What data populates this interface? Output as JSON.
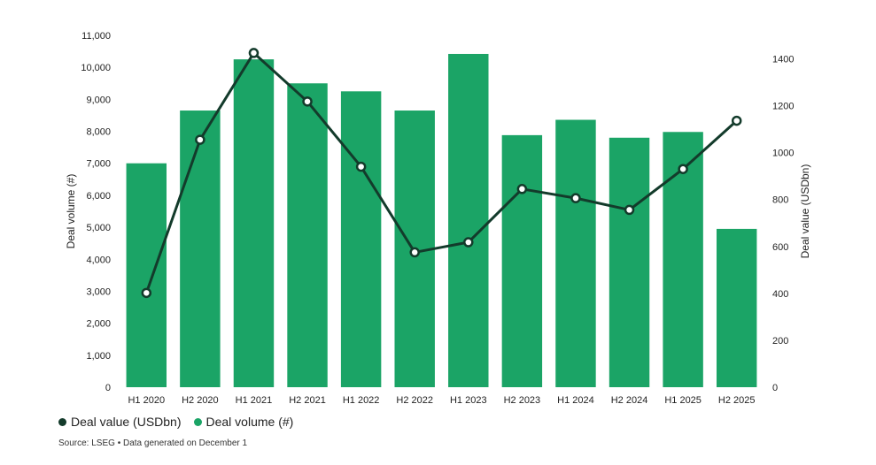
{
  "chart_data": {
    "type": "bar",
    "title": "",
    "categories": [
      "H1 2020",
      "H2 2020",
      "H1 2021",
      "H2 2021",
      "H1 2022",
      "H2 2022",
      "H1 2023",
      "H2 2023",
      "H1 2024",
      "H2 2024",
      "H1 2025",
      "H2 2025"
    ],
    "series": [
      {
        "name": "Deal volume (#)",
        "type": "bar",
        "axis": "left",
        "color": "#1ba466",
        "values": [
          7000,
          8650,
          10250,
          9500,
          9250,
          8650,
          10420,
          7880,
          8360,
          7800,
          7980,
          4950
        ]
      },
      {
        "name": "Deal value (USDbn)",
        "type": "line",
        "axis": "right",
        "color": "#133b2b",
        "values": [
          402,
          1055,
          1425,
          1218,
          940,
          575,
          618,
          845,
          806,
          756,
          930,
          1136
        ]
      }
    ],
    "ylabel": "Deal volume (#)",
    "y2label": "Deal value (USDbn)",
    "ylim": [
      0,
      11000
    ],
    "y2lim": [
      0,
      1500
    ],
    "yticks": [
      "0",
      "1,000",
      "2,000",
      "3,000",
      "4,000",
      "5,000",
      "6,000",
      "7,000",
      "8,000",
      "9,000",
      "10,000",
      "11,000"
    ],
    "y2ticks": [
      "0",
      "200",
      "400",
      "600",
      "800",
      "1000",
      "1200",
      "1400"
    ],
    "legend": [
      {
        "label": "Deal value (USDbn)",
        "color": "#133b2b"
      },
      {
        "label": "Deal volume (#)",
        "color": "#1ba466"
      }
    ],
    "source": "Source: LSEG • Data generated on December 1"
  }
}
